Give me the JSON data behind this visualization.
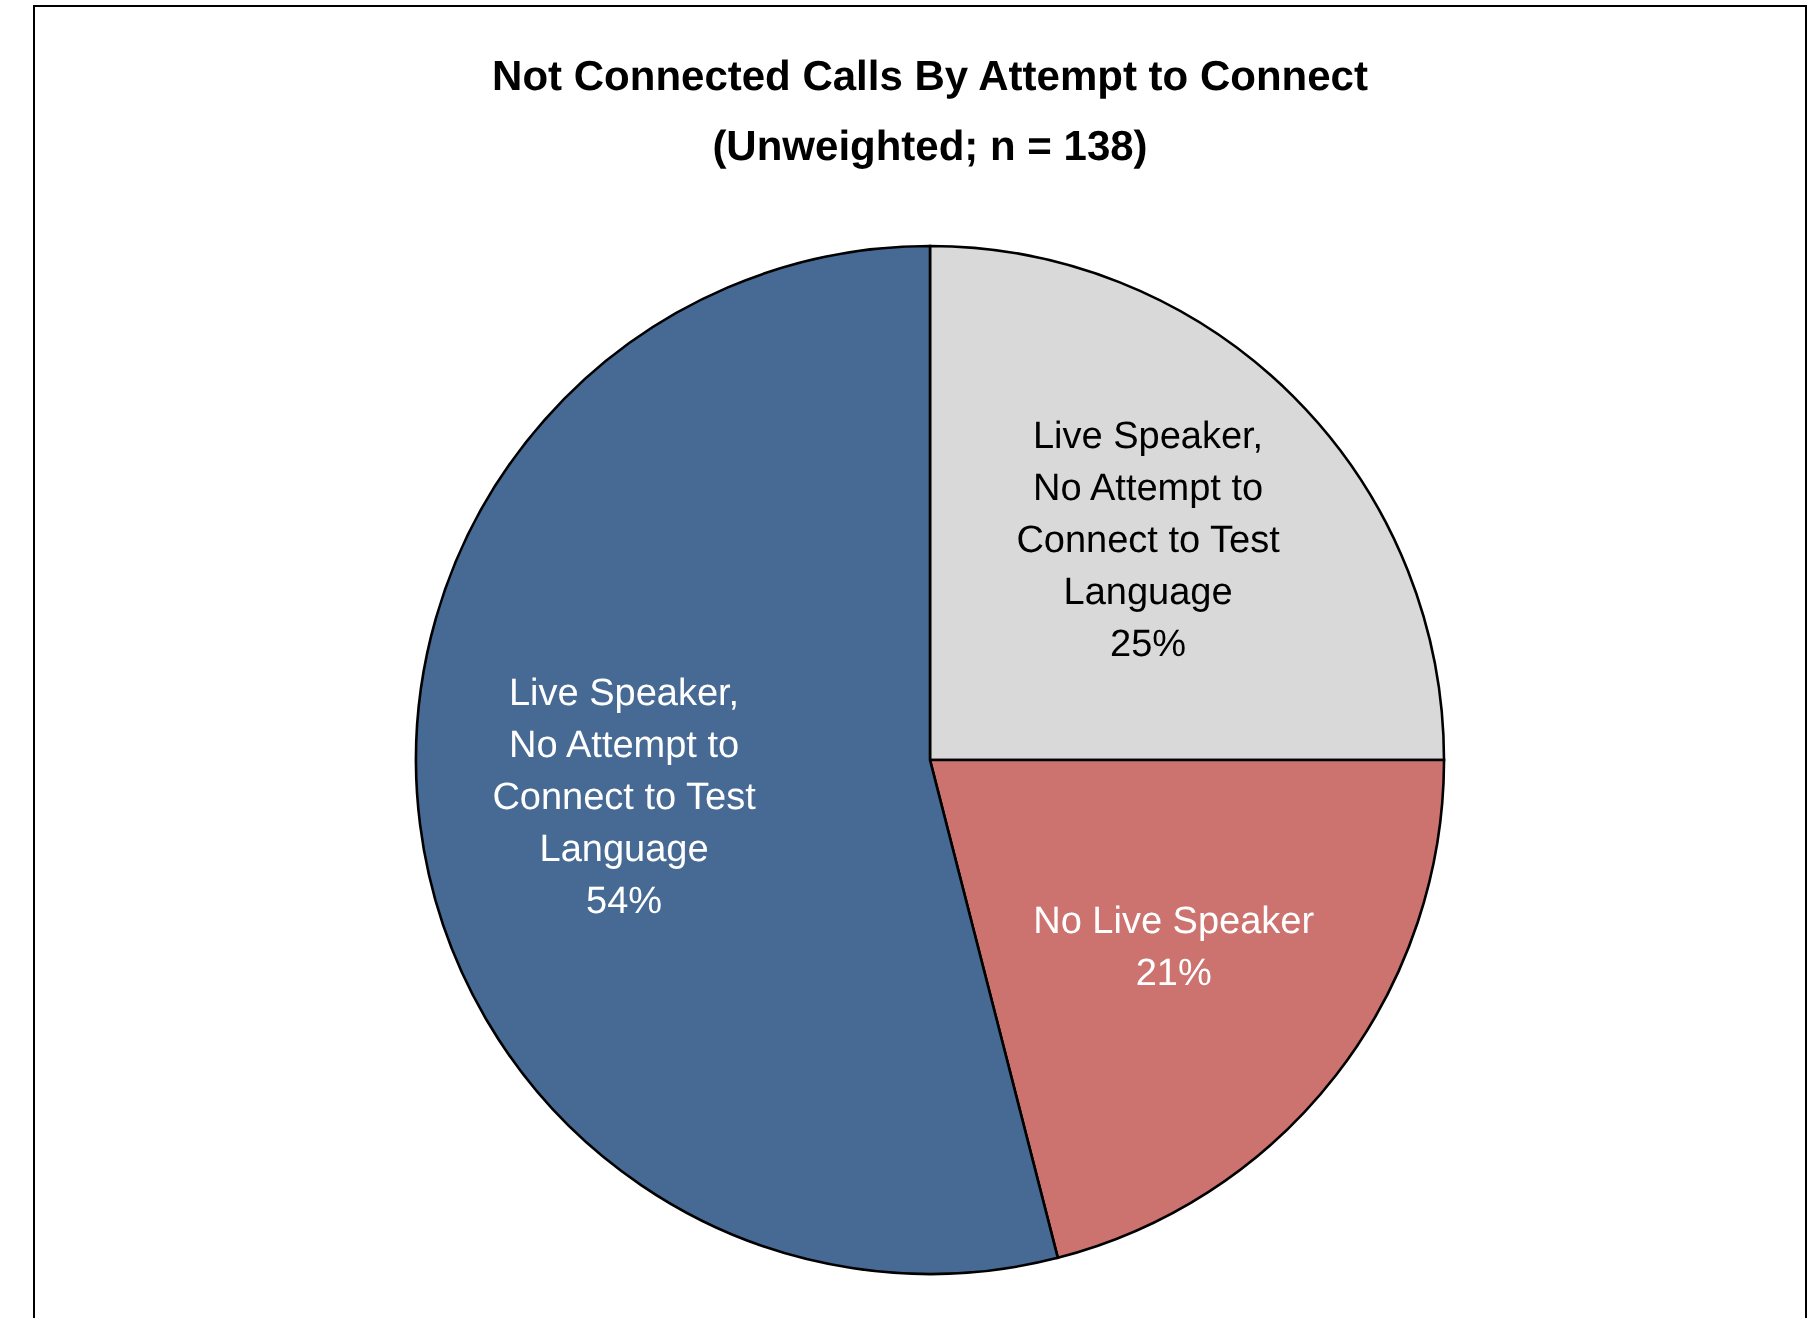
{
  "chart_data": {
    "type": "pie",
    "title": "Not Connected Calls By Attempt to Connect",
    "subtitle": "(Unweighted; n = 138)",
    "categories": [
      "Live Speaker, No Attempt to Connect to Test Language",
      "No Live Speaker",
      "Live Speaker, No Attempt to Connect to Test Language"
    ],
    "values": [
      25,
      21,
      54
    ],
    "colors": [
      "#d9d9d9",
      "#cc7370",
      "#466a94"
    ],
    "value_labels": [
      "25%",
      "21%",
      "54%"
    ]
  }
}
